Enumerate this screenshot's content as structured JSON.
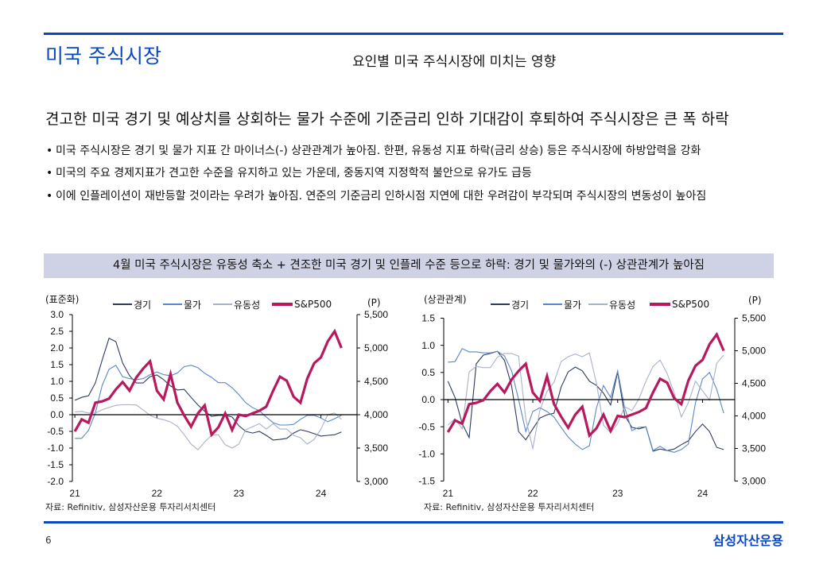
{
  "header": {
    "title": "미국 주식시장",
    "subtitle": "요인별 미국 주식시장에 미치는 영향"
  },
  "headline": "견고한 미국 경기 및 예상치를 상회하는 물가 수준에 기준금리 인하 기대감이 후퇴하여 주식시장은 큰 폭 하락",
  "bullet_marker": "•",
  "bullets": [
    "미국 주식시장은 경기 및 물가 지표 간 마이너스(-) 상관관계가 높아짐. 한편, 유동성 지표 하락(금리 상승) 등은 주식시장에 하방압력을 강화",
    "미국의 주요 경제지표가 견고한 수준을 유지하고 있는 가운데, 중동지역 지정학적 불안으로 유가도 급등",
    "이에 인플레이션이 재반등할 것이라는 우려가 높아짐. 연준의 기준금리 인하시점 지연에 대한 우려감이 부각되며 주식시장의 변동성이 높아짐"
  ],
  "banner": "4월 미국 주식시장은 유동성 축소 + 견조한 미국 경기 및 인플레 수준 등으로 하락: 경기 및 물가와의 (-) 상관관계가 높아짐",
  "chart_data": [
    {
      "type": "line",
      "y_left": {
        "label": "(표준화)",
        "range": [
          -2,
          3
        ],
        "ticks": [
          "3.0",
          "2.5",
          "2.0",
          "1.5",
          "1.0",
          "0.5",
          "0.0",
          "-0.5",
          "-1.0",
          "-1.5",
          "-2.0"
        ]
      },
      "y_right": {
        "label": "(P)",
        "range": [
          3000,
          5500
        ],
        "ticks": [
          "5,500",
          "5,000",
          "4,500",
          "4,000",
          "3,500",
          "3,000"
        ]
      },
      "x_ticks": [
        "21",
        "22",
        "23",
        "24"
      ],
      "xlim": [
        20.97,
        24.44
      ],
      "grid": false,
      "legend_position": "top",
      "x": [
        21.0,
        21.083,
        21.167,
        21.25,
        21.333,
        21.417,
        21.5,
        21.583,
        21.667,
        21.75,
        21.833,
        21.917,
        22.0,
        22.083,
        22.167,
        22.25,
        22.333,
        22.417,
        22.5,
        22.583,
        22.667,
        22.75,
        22.833,
        22.917,
        23.0,
        23.083,
        23.167,
        23.25,
        23.333,
        23.417,
        23.5,
        23.583,
        23.667,
        23.75,
        23.833,
        23.917,
        24.0,
        24.083,
        24.167,
        24.25
      ],
      "series": [
        {
          "name": "경기",
          "axis": "left",
          "color": "#2b3a5e",
          "values": [
            0.43,
            0.52,
            0.57,
            0.95,
            1.64,
            2.29,
            2.19,
            1.55,
            1.17,
            0.95,
            0.95,
            1.14,
            1.19,
            1.05,
            0.86,
            0.74,
            0.76,
            0.52,
            0.29,
            0.1,
            -0.05,
            -0.02,
            -0.02,
            -0.07,
            -0.33,
            -0.5,
            -0.55,
            -0.5,
            -0.62,
            -0.76,
            -0.74,
            -0.71,
            -0.55,
            -0.45,
            -0.5,
            -0.57,
            -0.64,
            -0.62,
            -0.6,
            -0.52
          ]
        },
        {
          "name": "물가",
          "axis": "left",
          "color": "#5a86c8",
          "values": [
            -0.71,
            -0.71,
            -0.47,
            0.05,
            0.88,
            1.36,
            1.48,
            1.14,
            1.08,
            1.05,
            1.08,
            1.2,
            1.28,
            1.2,
            1.17,
            1.25,
            1.44,
            1.48,
            1.41,
            1.24,
            1.12,
            0.96,
            0.96,
            0.81,
            0.6,
            0.36,
            0.21,
            0.12,
            -0.07,
            -0.24,
            -0.31,
            -0.31,
            -0.29,
            -0.14,
            -0.02,
            -0.02,
            -0.1,
            -0.21,
            -0.12,
            -0.02
          ]
        },
        {
          "name": "유동성",
          "axis": "left",
          "color": "#aab2c8",
          "values": [
            0.08,
            0.1,
            0.05,
            0.05,
            0.15,
            0.22,
            0.28,
            0.3,
            0.3,
            0.29,
            0.14,
            -0.02,
            -0.11,
            -0.15,
            -0.22,
            -0.35,
            -0.6,
            -0.88,
            -1.05,
            -0.82,
            -0.62,
            -0.6,
            -0.9,
            -1.0,
            -0.88,
            -0.45,
            -0.36,
            -0.27,
            -0.43,
            -0.27,
            -0.43,
            -0.43,
            -0.62,
            -0.69,
            -0.88,
            -0.74,
            -0.43,
            0.0,
            0.05,
            -0.14
          ]
        },
        {
          "name": "S&P500",
          "axis": "right",
          "color": "#b8195d",
          "values": [
            3750,
            3930,
            3880,
            4180,
            4200,
            4240,
            4380,
            4490,
            4360,
            4560,
            4690,
            4800,
            4360,
            4230,
            4610,
            4180,
            3990,
            3820,
            4020,
            4140,
            3700,
            3810,
            4020,
            3770,
            4000,
            3980,
            4020,
            4060,
            4120,
            4360,
            4570,
            4510,
            4270,
            4180,
            4540,
            4770,
            4860,
            5100,
            5250,
            5000
          ]
        }
      ],
      "source": "자료: Refinitiv, 삼성자산운용 투자리서치센터"
    },
    {
      "type": "line",
      "y_left": {
        "label": "(상관관계)",
        "range": [
          -1.5,
          1.5
        ],
        "ticks": [
          "1.5",
          "1.0",
          "0.5",
          "0.0",
          "-0.5",
          "-1.0",
          "-1.5"
        ]
      },
      "y_right": {
        "label": "(P)",
        "range": [
          3000,
          5500
        ],
        "ticks": [
          "5,500",
          "5,000",
          "4,500",
          "4,000",
          "3,500",
          "3,000"
        ]
      },
      "x_ticks": [
        "21",
        "22",
        "23",
        "24"
      ],
      "xlim": [
        20.95,
        24.38
      ],
      "grid": false,
      "legend_position": "top",
      "x": [
        21.0,
        21.083,
        21.167,
        21.25,
        21.333,
        21.417,
        21.5,
        21.583,
        21.667,
        21.75,
        21.833,
        21.917,
        22.0,
        22.083,
        22.167,
        22.25,
        22.333,
        22.417,
        22.5,
        22.583,
        22.667,
        22.75,
        22.833,
        22.917,
        23.0,
        23.083,
        23.167,
        23.25,
        23.333,
        23.417,
        23.5,
        23.583,
        23.667,
        23.75,
        23.833,
        23.917,
        24.0,
        24.083,
        24.167,
        24.25
      ],
      "series": [
        {
          "name": "경기",
          "axis": "left",
          "color": "#2b3a5e",
          "values": [
            0.34,
            0.04,
            -0.44,
            -0.7,
            0.66,
            0.82,
            0.85,
            0.89,
            0.72,
            0.25,
            -0.59,
            -0.74,
            -0.54,
            -0.34,
            -0.28,
            -0.25,
            0.23,
            0.51,
            0.6,
            0.53,
            0.34,
            0.26,
            0.12,
            -0.1,
            0.51,
            -0.29,
            -0.51,
            -0.54,
            -0.5,
            -0.95,
            -0.91,
            -0.94,
            -0.91,
            -0.83,
            -0.76,
            -0.59,
            -0.45,
            -0.59,
            -0.88,
            -0.92
          ]
        },
        {
          "name": "물가",
          "axis": "left",
          "color": "#5a86c8",
          "values": [
            0.69,
            0.7,
            0.94,
            0.88,
            0.88,
            0.86,
            0.86,
            0.89,
            0.8,
            0.53,
            0.0,
            -0.59,
            -0.22,
            -0.15,
            -0.22,
            -0.32,
            -0.51,
            -0.69,
            -0.82,
            -0.92,
            -0.85,
            -0.15,
            0.26,
            0.04,
            0.53,
            -0.15,
            -0.57,
            -0.51,
            -0.5,
            -0.94,
            -0.86,
            -0.94,
            -0.97,
            -0.92,
            -0.82,
            -0.06,
            0.38,
            0.5,
            0.19,
            -0.25
          ]
        },
        {
          "name": "유동성",
          "axis": "left",
          "color": "#aab2c8",
          "values": [
            -0.47,
            -0.35,
            -0.54,
            0.51,
            0.61,
            0.59,
            0.59,
            0.78,
            0.85,
            0.85,
            0.8,
            -0.35,
            -0.9,
            -0.2,
            0.15,
            0.32,
            0.7,
            0.79,
            0.84,
            0.79,
            0.86,
            0.3,
            -0.47,
            -0.61,
            -0.44,
            -0.13,
            -0.2,
            0.01,
            0.34,
            0.61,
            0.73,
            0.48,
            0.12,
            -0.32,
            -0.06,
            0.34,
            0.16,
            -0.01,
            0.67,
            0.82
          ]
        },
        {
          "name": "S&P500",
          "axis": "right",
          "color": "#b8195d",
          "values": [
            3750,
            3930,
            3880,
            4180,
            4200,
            4240,
            4380,
            4490,
            4360,
            4560,
            4690,
            4800,
            4360,
            4230,
            4610,
            4180,
            3990,
            3820,
            4020,
            4140,
            3700,
            3810,
            4020,
            3770,
            4000,
            3980,
            4020,
            4060,
            4120,
            4360,
            4570,
            4510,
            4270,
            4180,
            4540,
            4770,
            4860,
            5100,
            5250,
            5000
          ]
        }
      ],
      "source": "자료: Refinitiv, 삼성자산운용 투자리서치센터"
    }
  ],
  "footer": {
    "page_number": "6",
    "logo": "삼성자산운용"
  },
  "colors": {
    "brand_blue": "#0a47c2",
    "banner_bg": "#cfd2e5"
  }
}
